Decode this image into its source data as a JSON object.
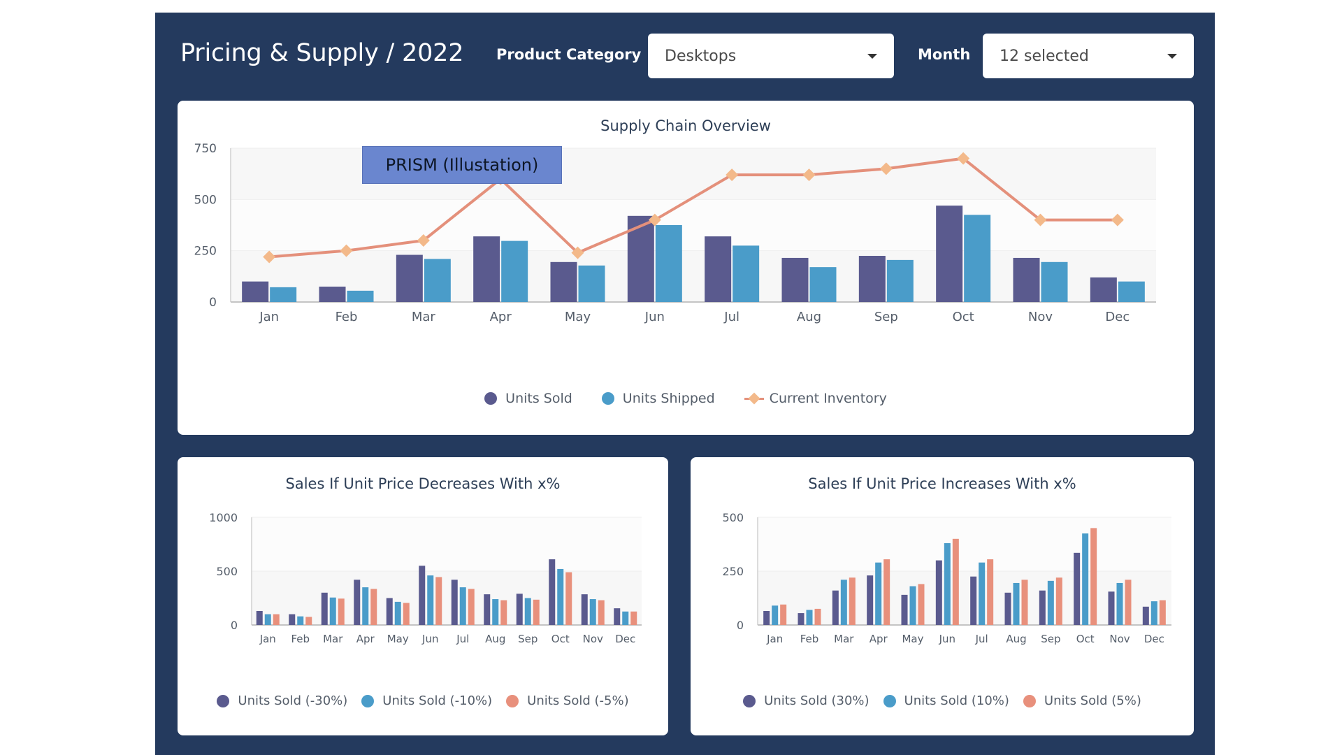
{
  "header": {
    "title": "Pricing & Supply / 2022",
    "product_category_label": "Product Category",
    "product_category_value": "Desktops",
    "month_label": "Month",
    "month_value": "12 selected"
  },
  "overlay_badge": "PRISM (Illustation)",
  "colors": {
    "background": "#243a5e",
    "units_sold": "#5a5a8e",
    "units_shipped": "#4a9cc9",
    "inventory_line": "#e4907b",
    "inventory_marker": "#f3b98a",
    "scenario_salmon": "#e8907c"
  },
  "chart_data": [
    {
      "type": "bar",
      "title": "Supply Chain Overview",
      "categories": [
        "Jan",
        "Feb",
        "Mar",
        "Apr",
        "May",
        "Jun",
        "Jul",
        "Aug",
        "Sep",
        "Oct",
        "Nov",
        "Dec"
      ],
      "series": [
        {
          "name": "Units Sold",
          "type": "bar",
          "values": [
            100,
            75,
            230,
            320,
            195,
            420,
            320,
            215,
            225,
            470,
            215,
            120
          ]
        },
        {
          "name": "Units Shipped",
          "type": "bar",
          "values": [
            72,
            55,
            210,
            298,
            178,
            375,
            275,
            170,
            205,
            425,
            195,
            100
          ]
        },
        {
          "name": "Current Inventory",
          "type": "line",
          "values": [
            220,
            250,
            300,
            600,
            240,
            400,
            620,
            620,
            650,
            700,
            400,
            400
          ]
        }
      ],
      "ylim": [
        0,
        750
      ],
      "yticks": [
        0,
        250,
        500,
        750
      ],
      "legend": "bottom"
    },
    {
      "type": "bar",
      "title": "Sales If Unit Price Decreases With x%",
      "categories": [
        "Jan",
        "Feb",
        "Mar",
        "Apr",
        "May",
        "Jun",
        "Jul",
        "Aug",
        "Sep",
        "Oct",
        "Nov",
        "Dec"
      ],
      "series": [
        {
          "name": "Units Sold (-30%)",
          "values": [
            130,
            100,
            300,
            420,
            250,
            550,
            420,
            285,
            290,
            610,
            285,
            155
          ]
        },
        {
          "name": "Units Sold (-10%)",
          "values": [
            100,
            80,
            255,
            350,
            215,
            460,
            350,
            240,
            250,
            520,
            240,
            125
          ]
        },
        {
          "name": "Units Sold (-5%)",
          "values": [
            100,
            75,
            245,
            335,
            205,
            445,
            335,
            230,
            235,
            490,
            230,
            125
          ]
        }
      ],
      "ylim": [
        0,
        1000
      ],
      "yticks": [
        0,
        500,
        1000
      ],
      "legend": "bottom"
    },
    {
      "type": "bar",
      "title": "Sales If Unit Price Increases With x%",
      "categories": [
        "Jan",
        "Feb",
        "Mar",
        "Apr",
        "May",
        "Jun",
        "Jul",
        "Aug",
        "Sep",
        "Oct",
        "Nov",
        "Dec"
      ],
      "series": [
        {
          "name": "Units Sold (30%)",
          "values": [
            65,
            55,
            160,
            230,
            140,
            300,
            225,
            150,
            160,
            335,
            155,
            85
          ]
        },
        {
          "name": "Units Sold (10%)",
          "values": [
            90,
            70,
            210,
            290,
            180,
            380,
            290,
            195,
            205,
            425,
            195,
            110
          ]
        },
        {
          "name": "Units Sold (5%)",
          "values": [
            95,
            75,
            220,
            305,
            190,
            400,
            305,
            210,
            220,
            450,
            210,
            115
          ]
        }
      ],
      "ylim": [
        0,
        500
      ],
      "yticks": [
        0,
        250,
        500
      ],
      "legend": "bottom"
    }
  ]
}
